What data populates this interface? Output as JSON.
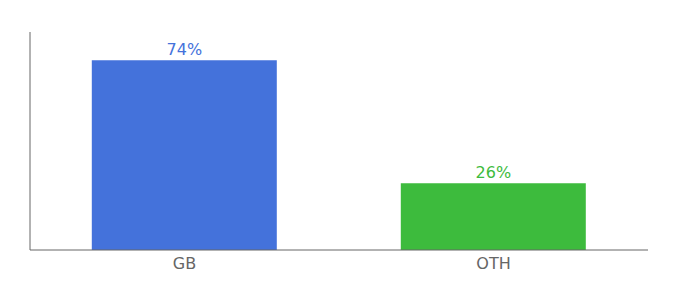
{
  "chart_data": {
    "type": "bar",
    "categories": [
      "GB",
      "OTH"
    ],
    "values": [
      74,
      26
    ],
    "value_labels": [
      "74%",
      "26%"
    ],
    "colors": [
      "#4472db",
      "#3dbb3d"
    ],
    "ylim": [
      0,
      85
    ],
    "data_labels": true,
    "tick_labels": "x",
    "grid": false
  }
}
